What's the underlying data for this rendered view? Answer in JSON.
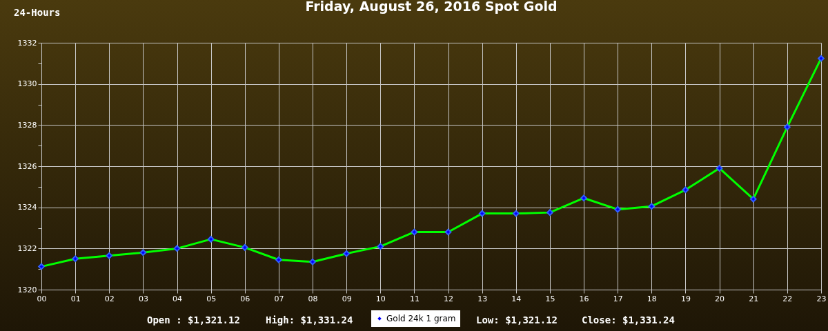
{
  "chart_data": {
    "type": "line",
    "title": "Friday, August 26, 2016 Spot Gold",
    "annotations": [
      "24-Hours",
      "Open : $1,321.12",
      "High: $1,331.24",
      "Low: $1,321.12",
      "Close: $1,331.24"
    ],
    "categories": [
      "00",
      "01",
      "02",
      "03",
      "04",
      "05",
      "06",
      "07",
      "08",
      "09",
      "10",
      "11",
      "12",
      "13",
      "14",
      "15",
      "16",
      "17",
      "18",
      "19",
      "20",
      "21",
      "22",
      "23"
    ],
    "series": [
      {
        "name": "Gold 24k 1 gram",
        "color": "#00ff00",
        "values": [
          1321.12,
          1321.5,
          1321.65,
          1321.8,
          1322.0,
          1322.45,
          1322.05,
          1321.45,
          1321.35,
          1321.75,
          1322.1,
          1322.8,
          1322.8,
          1323.7,
          1323.7,
          1323.75,
          1324.45,
          1323.9,
          1324.05,
          1324.85,
          1325.9,
          1324.4,
          1327.9,
          1331.24
        ]
      }
    ],
    "ylim": [
      1320,
      1332
    ],
    "yticks": [
      1320,
      {
        "value": 1321,
        "label": null
      },
      1322,
      {
        "value": 1323,
        "label": null
      },
      1324,
      {
        "value": 1325,
        "label": null
      },
      1326,
      {
        "value": 1327,
        "label": null
      },
      1328,
      {
        "value": 1329,
        "label": null
      },
      1330,
      {
        "value": 1331,
        "label": null
      },
      1332
    ],
    "grid": true,
    "legend": "bottom",
    "marker": "diamond",
    "line_style": "solid"
  }
}
